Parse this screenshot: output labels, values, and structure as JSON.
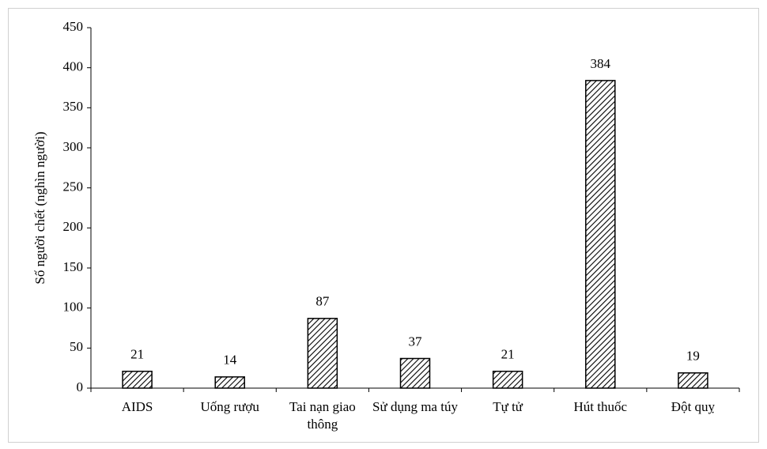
{
  "chart_data": {
    "type": "bar",
    "y_label": "Số người chết (nghìn người)",
    "categories": [
      "AIDS",
      "Uống rượu",
      "Tai nạn giao thông",
      "Sử dụng ma túy",
      "Tự tử",
      "Hút thuốc",
      "Đột quỵ"
    ],
    "values": [
      21,
      14,
      87,
      37,
      21,
      384,
      19
    ],
    "color": "#000000",
    "ylim": [
      0,
      450
    ],
    "yticks": [
      0,
      50,
      100,
      150,
      200,
      250,
      300,
      350,
      400,
      450
    ]
  }
}
